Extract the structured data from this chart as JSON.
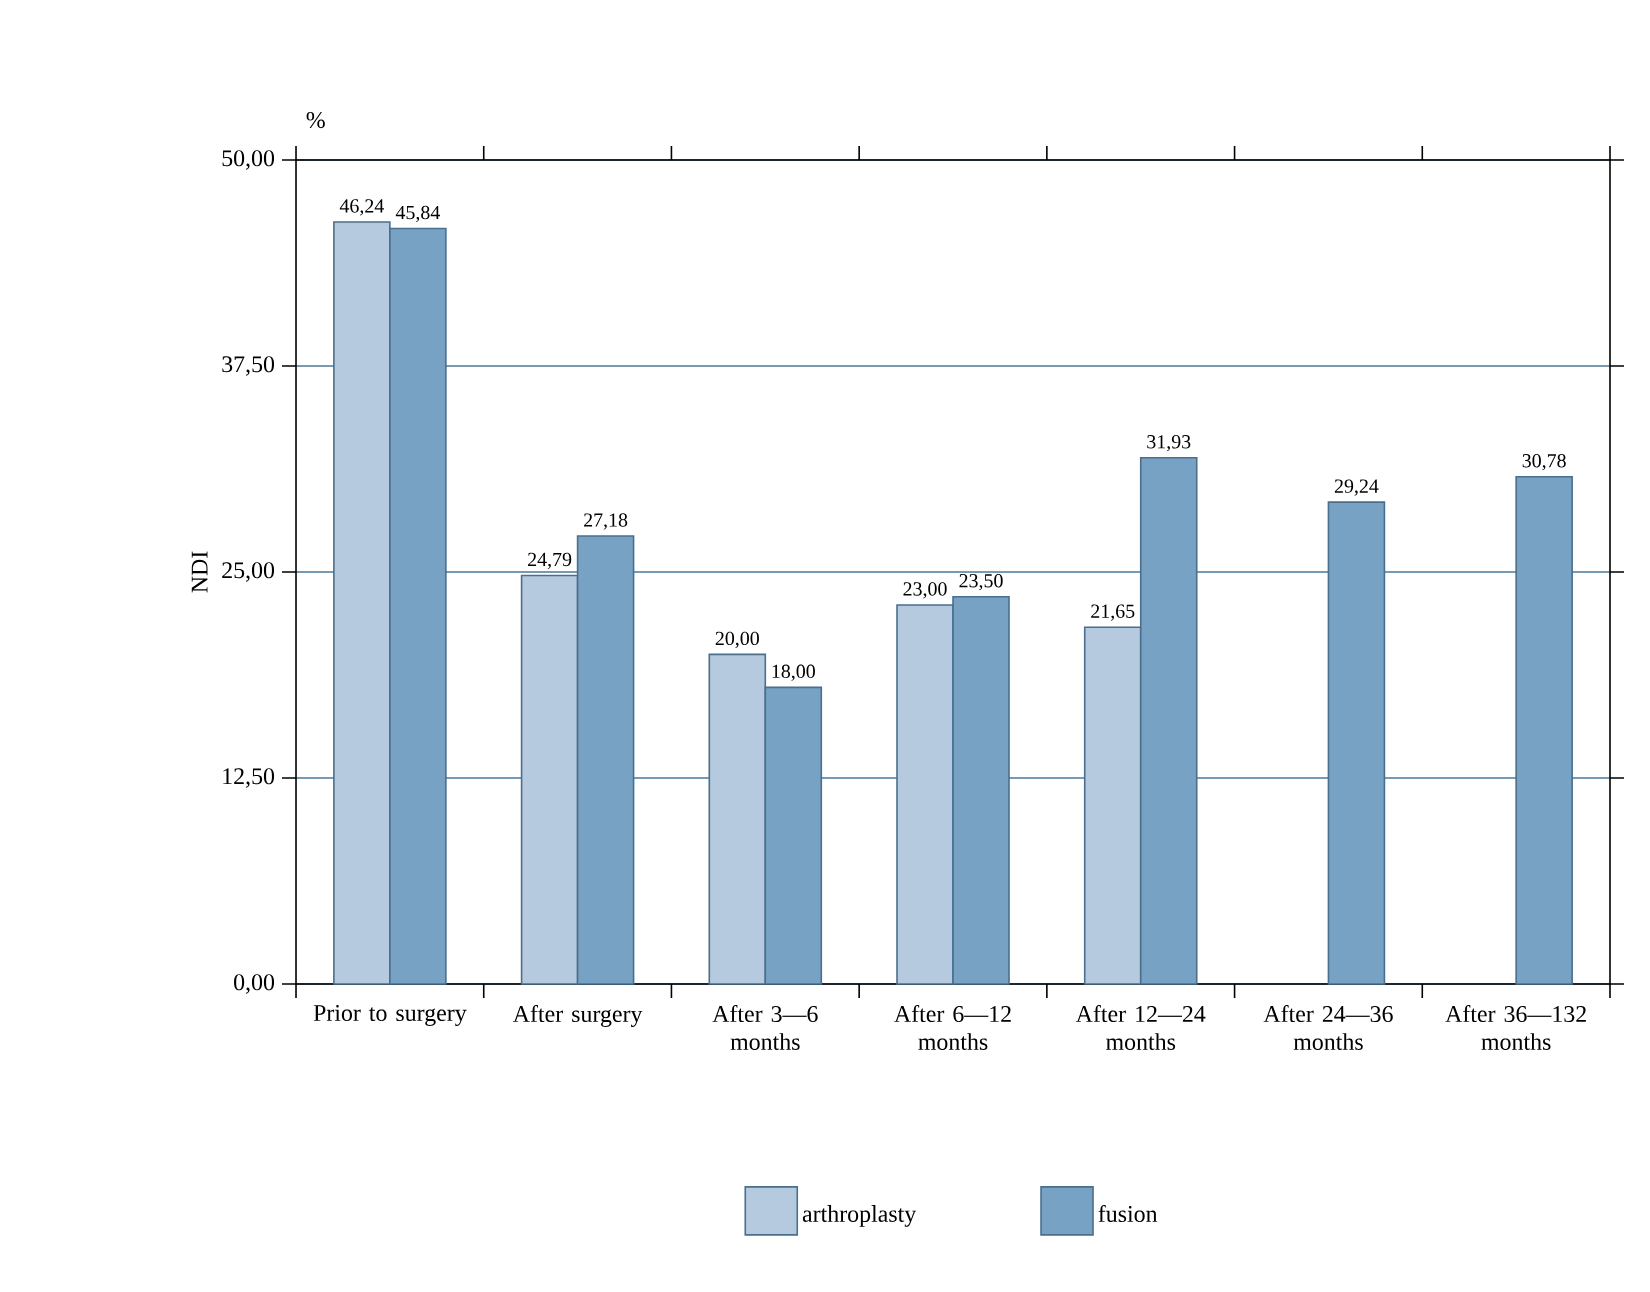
{
  "chart_data": {
    "type": "bar",
    "ylabel": "NDI",
    "annotations": [
      "%"
    ],
    "categories": [
      "Prior to surgery",
      "After surgery",
      "After 3—6 months",
      "After 6—12 months",
      "After 12—24 months",
      "After 24—36 months",
      "After 36—132 months"
    ],
    "series": [
      {
        "name": "arthroplasty",
        "color": "#b5c9df",
        "values": [
          46.24,
          24.79,
          20.0,
          23.0,
          21.65,
          null,
          null
        ],
        "value_labels": [
          "46,24",
          "24,79",
          "20,00",
          "23,00",
          "21,65",
          null,
          null
        ]
      },
      {
        "name": "fusion",
        "color": "#78a2c4",
        "values": [
          45.84,
          27.18,
          18.0,
          23.5,
          31.93,
          29.24,
          30.78
        ],
        "value_labels": [
          "45,84",
          "27,18",
          "18,00",
          "23,50",
          "31,93",
          "29,24",
          "30,78"
        ]
      }
    ],
    "ylim": [
      0,
      50
    ],
    "yticks": [
      {
        "value": 0,
        "label": "0,00"
      },
      {
        "value": 12.5,
        "label": "12,50"
      },
      {
        "value": 25,
        "label": "25,00"
      },
      {
        "value": 37.5,
        "label": "37,50"
      },
      {
        "value": 50,
        "label": "50,00"
      }
    ],
    "grid": "y",
    "legend": "bottom"
  }
}
